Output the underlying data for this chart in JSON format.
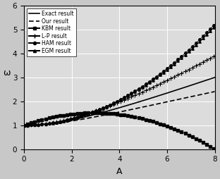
{
  "A_range": [
    0,
    8
  ],
  "ylim": [
    0,
    6
  ],
  "xlim": [
    0,
    8
  ],
  "xticks": [
    0,
    2,
    4,
    6,
    8
  ],
  "yticks": [
    0,
    1,
    2,
    3,
    4,
    5,
    6
  ],
  "xlabel": "A",
  "ylabel": "ω",
  "grid": true,
  "legend_labels": [
    "Exact result",
    "Our result",
    "KBM result",
    "L-P result",
    "HAM result",
    "EGM result"
  ],
  "fig_size": [
    3.12,
    2.54
  ],
  "dpi": 100,
  "bg_color": "#d8d8d8",
  "plot_bg": "#e8e8e8"
}
